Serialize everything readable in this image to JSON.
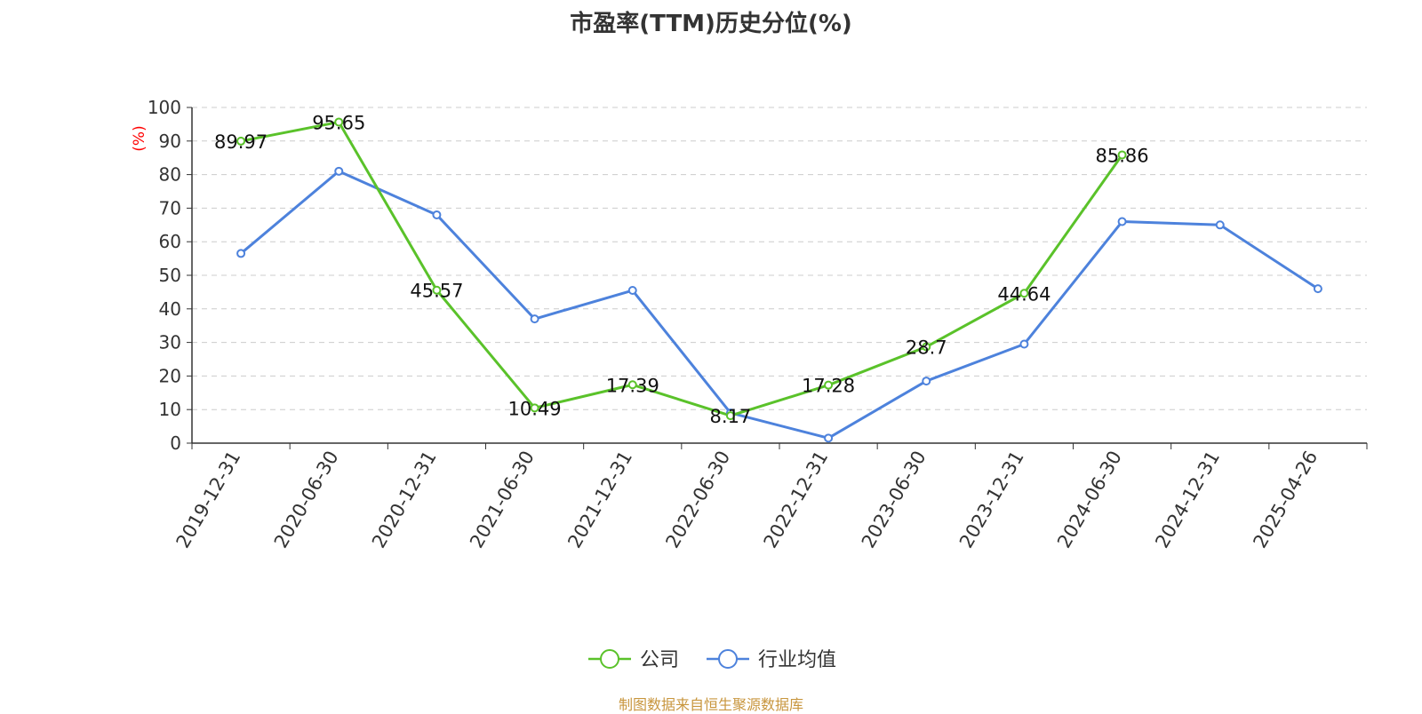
{
  "title": "市盈率(TTM)历史分位(%)",
  "source": "制图数据来自恒生聚源数据库",
  "colors": {
    "company": "#5ac22a",
    "industry": "#4d82dc",
    "ylabel": "#ff0000",
    "source": "#c8963e"
  },
  "chart_data": {
    "type": "line",
    "categories": [
      "2019-12-31",
      "2020-06-30",
      "2020-12-31",
      "2021-06-30",
      "2021-12-31",
      "2022-06-30",
      "2022-12-31",
      "2023-06-30",
      "2023-12-31",
      "2024-06-30",
      "2024-12-31",
      "2025-04-26"
    ],
    "ylabel": "(%)",
    "ylim": [
      0,
      100
    ],
    "yticks": [
      0,
      10,
      20,
      30,
      40,
      50,
      60,
      70,
      80,
      90,
      100
    ],
    "grid": true,
    "legend_position": "bottom-center",
    "series": [
      {
        "name": "公司",
        "color": "#5ac22a",
        "show_labels": true,
        "values": [
          89.97,
          95.65,
          45.57,
          10.49,
          17.39,
          8.17,
          17.28,
          28.7,
          44.64,
          85.86,
          null,
          null
        ]
      },
      {
        "name": "行业均值",
        "color": "#4d82dc",
        "show_labels": false,
        "values": [
          56.5,
          81,
          68,
          37,
          45.5,
          9,
          1.5,
          18.5,
          29.5,
          66,
          65,
          46
        ]
      }
    ]
  }
}
